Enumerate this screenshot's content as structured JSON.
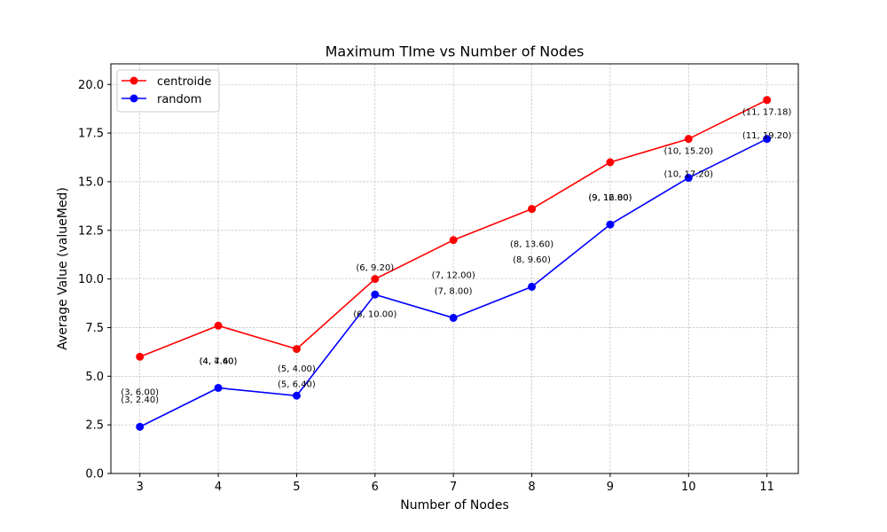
{
  "chart_data": {
    "type": "line",
    "title": "Maximum TIme vs Number of Nodes",
    "xlabel": "Number of Nodes",
    "ylabel": "Average Value (valueMed)",
    "x": [
      3,
      4,
      5,
      6,
      7,
      8,
      9,
      10,
      11
    ],
    "xlim": [
      2.63,
      11.4
    ],
    "ylim": [
      0,
      21.06
    ],
    "xticks": [
      "3",
      "4",
      "5",
      "6",
      "7",
      "8",
      "9",
      "10",
      "11"
    ],
    "yticks": [
      "0.0",
      "2.5",
      "5.0",
      "7.5",
      "10.0",
      "12.5",
      "15.0",
      "17.5",
      "20.0"
    ],
    "grid": true,
    "legend_position": "top-left",
    "series": [
      {
        "name": "centroide",
        "color": "#ff0000",
        "values": [
          6.0,
          7.6,
          6.4,
          10.0,
          12.0,
          13.6,
          16.0,
          17.2,
          19.2
        ]
      },
      {
        "name": "random",
        "color": "#0000ff",
        "values": [
          2.4,
          4.4,
          4.0,
          9.2,
          8.0,
          9.6,
          12.8,
          15.2,
          17.2
        ]
      }
    ],
    "annotations": [
      {
        "text": "(3, 6.00)",
        "x": 3,
        "y": 4.2
      },
      {
        "text": "(3, 2.40)",
        "x": 3,
        "y": 3.8
      },
      {
        "text": "(4, 7.60)",
        "x": 4,
        "y": 5.8
      },
      {
        "text": "(4, 4.40)",
        "x": 4,
        "y": 5.8
      },
      {
        "text": "(5, 4.00)",
        "x": 5,
        "y": 5.4
      },
      {
        "text": "(5, 6.40)",
        "x": 5,
        "y": 4.6
      },
      {
        "text": "(6, 9.20)",
        "x": 6,
        "y": 10.6
      },
      {
        "text": "(6, 10.00)",
        "x": 6,
        "y": 8.2
      },
      {
        "text": "(7, 12.00)",
        "x": 7,
        "y": 10.2
      },
      {
        "text": "(7, 8.00)",
        "x": 7,
        "y": 9.4
      },
      {
        "text": "(8, 13.60)",
        "x": 8,
        "y": 11.8
      },
      {
        "text": "(8, 9.60)",
        "x": 8,
        "y": 11.0
      },
      {
        "text": "(9, 16.00)",
        "x": 9,
        "y": 14.2
      },
      {
        "text": "(9, 12.80)",
        "x": 9,
        "y": 14.2
      },
      {
        "text": "(10, 15.20)",
        "x": 10,
        "y": 16.6
      },
      {
        "text": "(10, 17.20)",
        "x": 10,
        "y": 15.4
      },
      {
        "text": "(11, 17.18)",
        "x": 11,
        "y": 18.6
      },
      {
        "text": "(11, 19.20)",
        "x": 11,
        "y": 17.4
      }
    ]
  }
}
